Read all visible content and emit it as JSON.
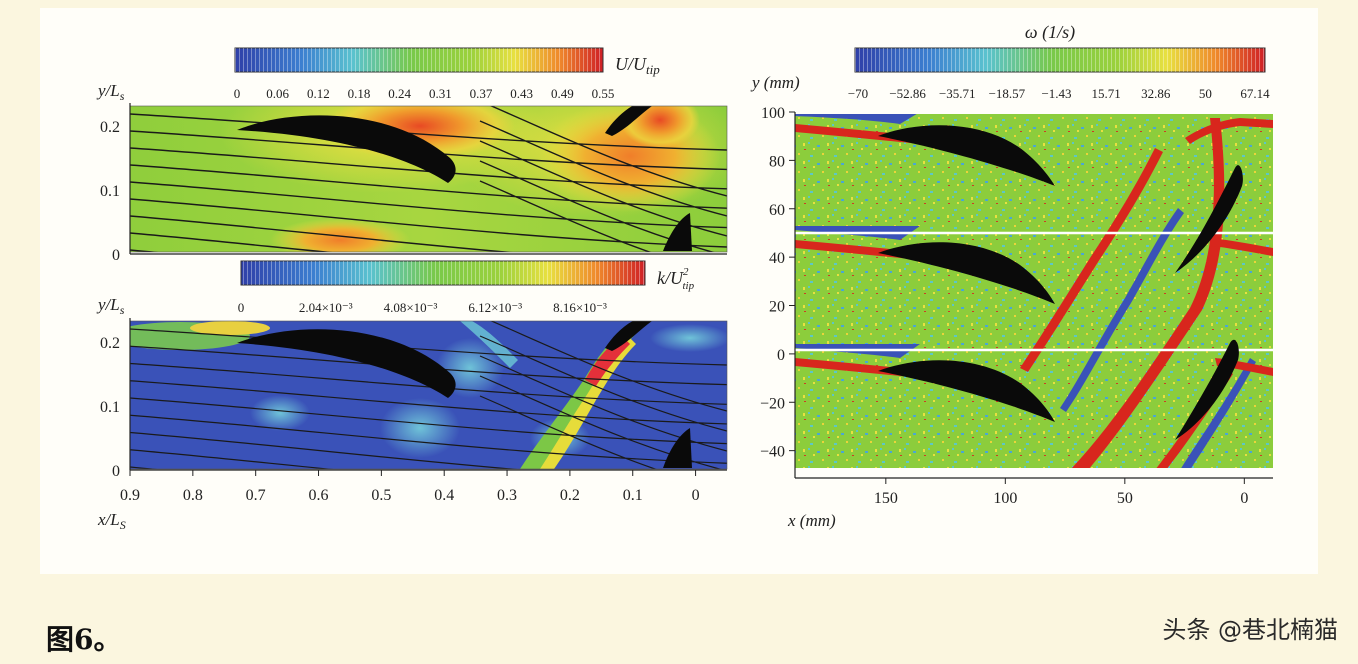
{
  "caption": "图6。",
  "watermark": "头条 @巷北楠猫",
  "colors": {
    "blue": "#3a52b8",
    "green": "#8ccd3c",
    "yellow": "#eee040",
    "red": "#d8261d",
    "blade": "#0a0a0a"
  },
  "chart_data": [
    {
      "type": "heatmap",
      "id": "velocity",
      "colorbar_label_parts": [
        "U/U",
        "tip"
      ],
      "colorbar_ticks": [
        "0",
        "0.06",
        "0.12",
        "0.18",
        "0.24",
        "0.31",
        "0.37",
        "0.43",
        "0.49",
        "0.55"
      ],
      "ylabel_parts": [
        "y/L",
        "s"
      ],
      "yticks": [
        "0.2",
        "0.1",
        "0"
      ],
      "ylim": [
        0,
        0.24
      ],
      "xlim": [
        0.9,
        -0.05
      ],
      "streamlines": true
    },
    {
      "type": "heatmap",
      "id": "turbulence",
      "colorbar_label_parts": [
        "k/U",
        "2",
        "tip"
      ],
      "colorbar_ticks": [
        "0",
        "2.04×10⁻³",
        "4.08×10⁻³",
        "6.12×10⁻³",
        "8.16×10⁻³"
      ],
      "ylabel_parts": [
        "y/L",
        "s"
      ],
      "yticks": [
        "0.2",
        "0.1",
        "0"
      ],
      "xlabel_parts": [
        "x/L",
        "S"
      ],
      "xticks": [
        "0.9",
        "0.8",
        "0.7",
        "0.6",
        "0.5",
        "0.4",
        "0.3",
        "0.2",
        "0.1",
        "0"
      ],
      "ylim": [
        0,
        0.24
      ],
      "xlim": [
        0.9,
        -0.05
      ],
      "streamlines": true
    },
    {
      "type": "heatmap",
      "id": "vorticity",
      "colorbar_label": "ω (1/s)",
      "colorbar_ticks": [
        "−70",
        "−52.86",
        "−35.71",
        "−18.57",
        "−1.43",
        "15.71",
        "32.86",
        "50",
        "67.14"
      ],
      "ylabel": "y (mm)",
      "yticks": [
        "100",
        "80",
        "60",
        "40",
        "20",
        "0",
        "−20",
        "−40"
      ],
      "xlabel": "x (mm)",
      "xticks": [
        "150",
        "100",
        "50",
        "0"
      ],
      "ylim": [
        -48,
        100
      ],
      "xlim": [
        188,
        -12
      ]
    }
  ]
}
